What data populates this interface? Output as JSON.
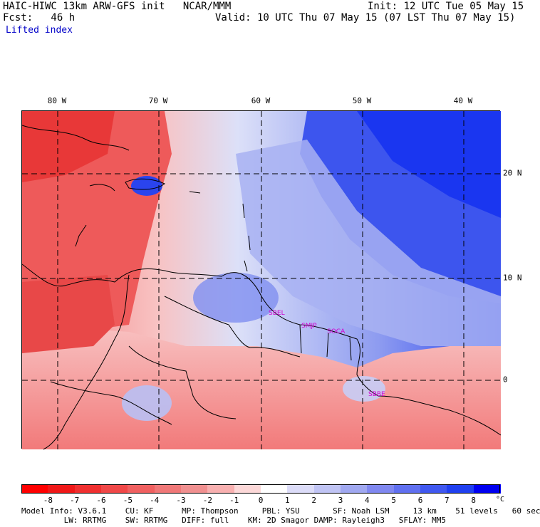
{
  "header": {
    "model_line": "HAIC-HIWC 13km ARW-GFS init   NCAR/MMM",
    "fcst_line": "Fcst:   46 h",
    "field_name": "Lifted index",
    "init_line": "Init: 12 UTC Tue 05 May 15",
    "valid_line": "Valid: 10 UTC Thu 07 May 15 (07 LST Thu 07 May 15)"
  },
  "map": {
    "longitude_labels": [
      "80 W",
      "70 W",
      "60 W",
      "50 W",
      "40 W"
    ],
    "latitude_labels": [
      "20 N",
      "10 N",
      "0"
    ],
    "station_labels": [
      "SBEL",
      "SMJP",
      "SOCA",
      "SBBE"
    ],
    "colors": {
      "neg_strong": "#e83838",
      "neg_mid": "#f27a7a",
      "neg_light": "#f8c2c2",
      "pos_light": "#dce0f8",
      "pos_mid": "#8c9af0",
      "pos_strong": "#2a44ee",
      "station": "#d000d0"
    }
  },
  "colorbar": {
    "labels": [
      "-8",
      "-7",
      "-6",
      "-5",
      "-4",
      "-3",
      "-2",
      "-1",
      "0",
      "1",
      "2",
      "3",
      "4",
      "5",
      "6",
      "7",
      "8"
    ],
    "unit": "°C",
    "colors": [
      "#ff0000",
      "#f01818",
      "#f03030",
      "#f04848",
      "#f06060",
      "#f07878",
      "#f09090",
      "#f8b0b0",
      "#fcd8d8",
      "#ffffff",
      "#dcdcf8",
      "#c0c4f4",
      "#a0a8f0",
      "#8088f0",
      "#6070f0",
      "#4058f0",
      "#2040f0",
      "#0000f0"
    ]
  },
  "footer": {
    "line1": "Model Info: V3.6.1    CU: KF      MP: Thompson     PBL: YSU       SF: Noah LSM     13 km    51 levels   60 sec",
    "line2": "         LW: RRTMG    SW: RRTMG   DIFF: full    KM: 2D Smagor DAMP: Rayleigh3   SFLAY: MM5"
  }
}
